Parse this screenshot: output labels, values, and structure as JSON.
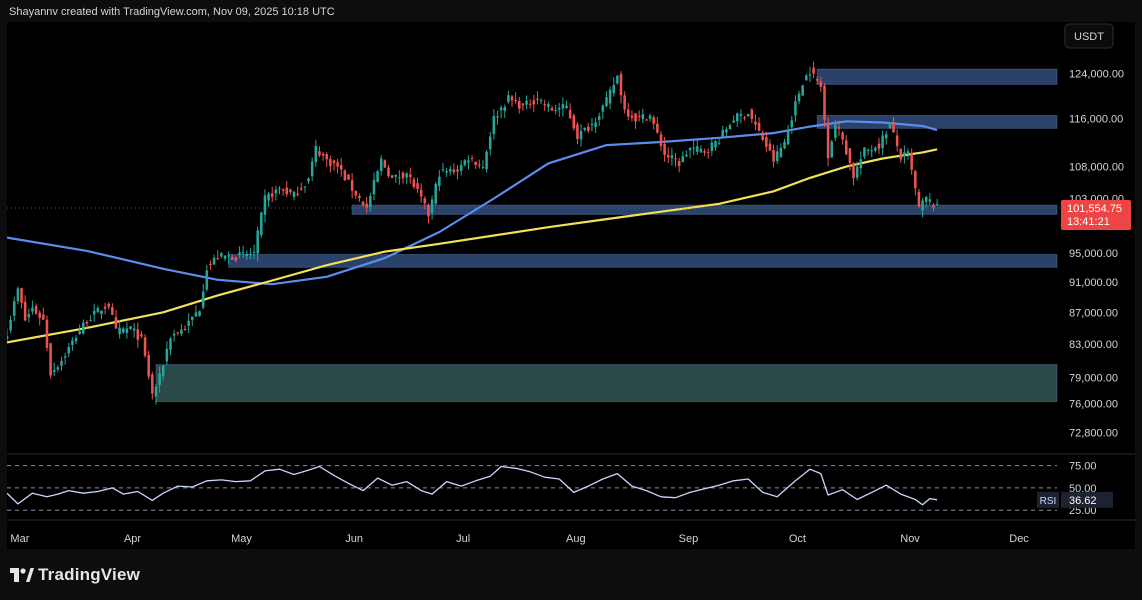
{
  "header": {
    "attribution": "Shayannv created with TradingView.com, Nov 09, 2025 10:18 UTC"
  },
  "footer": {
    "brand": "TradingView",
    "logo_icon": "tradingview-logo-icon"
  },
  "colors": {
    "background": "#000000",
    "up": "#26a69a",
    "down": "#ef5350",
    "ma_blue": "#5b8def",
    "ma_yellow": "#f2e05a",
    "zone_blue": "#2c4570",
    "zone_teal": "#2e4d4d",
    "price_tag": "#ef4444",
    "rsi_line": "#c9d6ff"
  },
  "chart_data": [
    {
      "type": "candlestick",
      "quote_currency": "USDT",
      "x_ticks": [
        "Mar",
        "Apr",
        "May",
        "Jun",
        "Jul",
        "Aug",
        "Sep",
        "Oct",
        "Nov",
        "Dec"
      ],
      "x_range": [
        "2025-02-26",
        "2025-12-12"
      ],
      "y_ticks": [
        124000,
        116000,
        108000,
        103000,
        95000,
        91000,
        87000,
        83000,
        79000,
        76000,
        72800
      ],
      "y_tick_labels": [
        "124,000.00",
        "116,000.00",
        "108,000.00",
        "103,000.00",
        "95,000.00",
        "91,000.00",
        "87,000.00",
        "83,000.00",
        "79,000.00",
        "76,000.00",
        "72,800.00"
      ],
      "y_scale": "log",
      "y_range": [
        70500,
        126500
      ],
      "last_price": {
        "value": 101554.75,
        "label": "101,554.75",
        "countdown": "13:41:21"
      },
      "close_series": [
        [
          "2025-02-26",
          84500
        ],
        [
          "2025-03-01",
          90000
        ],
        [
          "2025-03-03",
          86000
        ],
        [
          "2025-03-05",
          87500
        ],
        [
          "2025-03-08",
          86000
        ],
        [
          "2025-03-10",
          79500
        ],
        [
          "2025-03-13",
          81000
        ],
        [
          "2025-03-17",
          84000
        ],
        [
          "2025-03-20",
          86000
        ],
        [
          "2025-03-24",
          87500
        ],
        [
          "2025-03-26",
          88000
        ],
        [
          "2025-03-28",
          84500
        ],
        [
          "2025-04-01",
          85000
        ],
        [
          "2025-04-04",
          83500
        ],
        [
          "2025-04-07",
          77000
        ],
        [
          "2025-04-09",
          79000
        ],
        [
          "2025-04-12",
          84000
        ],
        [
          "2025-04-16",
          85000
        ],
        [
          "2025-04-20",
          87500
        ],
        [
          "2025-04-22",
          93000
        ],
        [
          "2025-04-25",
          94500
        ],
        [
          "2025-04-30",
          94500
        ],
        [
          "2025-05-05",
          95000
        ],
        [
          "2025-05-08",
          103000
        ],
        [
          "2025-05-12",
          104500
        ],
        [
          "2025-05-16",
          103500
        ],
        [
          "2025-05-20",
          106000
        ],
        [
          "2025-05-22",
          111000
        ],
        [
          "2025-05-25",
          109000
        ],
        [
          "2025-05-28",
          108000
        ],
        [
          "2025-06-01",
          104500
        ],
        [
          "2025-06-05",
          101500
        ],
        [
          "2025-06-09",
          109000
        ],
        [
          "2025-06-12",
          106000
        ],
        [
          "2025-06-16",
          107000
        ],
        [
          "2025-06-19",
          104000
        ],
        [
          "2025-06-22",
          100500
        ],
        [
          "2025-06-25",
          107000
        ],
        [
          "2025-06-30",
          107500
        ],
        [
          "2025-07-03",
          109500
        ],
        [
          "2025-07-07",
          108000
        ],
        [
          "2025-07-10",
          116000
        ],
        [
          "2025-07-14",
          119500
        ],
        [
          "2025-07-18",
          118000
        ],
        [
          "2025-07-22",
          119500
        ],
        [
          "2025-07-26",
          117500
        ],
        [
          "2025-07-30",
          118000
        ],
        [
          "2025-08-02",
          113000
        ],
        [
          "2025-08-06",
          115000
        ],
        [
          "2025-08-10",
          119000
        ],
        [
          "2025-08-13",
          123500
        ],
        [
          "2025-08-15",
          117500
        ],
        [
          "2025-08-18",
          116000
        ],
        [
          "2025-08-22",
          116500
        ],
        [
          "2025-08-26",
          110000
        ],
        [
          "2025-08-30",
          108500
        ],
        [
          "2025-09-02",
          111000
        ],
        [
          "2025-09-06",
          110500
        ],
        [
          "2025-09-10",
          112500
        ],
        [
          "2025-09-14",
          116000
        ],
        [
          "2025-09-18",
          117000
        ],
        [
          "2025-09-22",
          112500
        ],
        [
          "2025-09-25",
          109000
        ],
        [
          "2025-09-28",
          112000
        ],
        [
          "2025-10-01",
          118500
        ],
        [
          "2025-10-03",
          122500
        ],
        [
          "2025-10-05",
          124500
        ],
        [
          "2025-10-08",
          121500
        ],
        [
          "2025-10-10",
          110000
        ],
        [
          "2025-10-12",
          115000
        ],
        [
          "2025-10-14",
          112500
        ],
        [
          "2025-10-17",
          106500
        ],
        [
          "2025-10-20",
          110500
        ],
        [
          "2025-10-24",
          111500
        ],
        [
          "2025-10-27",
          115000
        ],
        [
          "2025-10-30",
          109500
        ],
        [
          "2025-11-01",
          110000
        ],
        [
          "2025-11-04",
          101500
        ],
        [
          "2025-11-06",
          103000
        ],
        [
          "2025-11-09",
          101554.75
        ]
      ],
      "moving_averages": [
        {
          "color": "#5b8def",
          "points": [
            [
              "2025-02-26",
              97200
            ],
            [
              "2025-03-20",
              95300
            ],
            [
              "2025-04-10",
              92800
            ],
            [
              "2025-04-25",
              91300
            ],
            [
              "2025-05-10",
              90700
            ],
            [
              "2025-05-25",
              91700
            ],
            [
              "2025-06-10",
              94300
            ],
            [
              "2025-06-25",
              98000
            ],
            [
              "2025-07-10",
              103000
            ],
            [
              "2025-07-25",
              108500
            ],
            [
              "2025-08-10",
              111500
            ],
            [
              "2025-08-25",
              112000
            ],
            [
              "2025-09-10",
              112700
            ],
            [
              "2025-09-25",
              113500
            ],
            [
              "2025-10-05",
              114600
            ],
            [
              "2025-10-15",
              115500
            ],
            [
              "2025-10-25",
              115300
            ],
            [
              "2025-11-05",
              114700
            ],
            [
              "2025-11-09",
              114000
            ]
          ]
        },
        {
          "color": "#f2e05a",
          "points": [
            [
              "2025-02-26",
              83200
            ],
            [
              "2025-03-20",
              85000
            ],
            [
              "2025-04-10",
              87000
            ],
            [
              "2025-04-25",
              89200
            ],
            [
              "2025-05-10",
              91200
            ],
            [
              "2025-05-25",
              93300
            ],
            [
              "2025-06-10",
              95200
            ],
            [
              "2025-06-25",
              96300
            ],
            [
              "2025-07-10",
              97500
            ],
            [
              "2025-07-25",
              98700
            ],
            [
              "2025-08-10",
              99900
            ],
            [
              "2025-08-25",
              101000
            ],
            [
              "2025-09-10",
              102200
            ],
            [
              "2025-09-25",
              104100
            ],
            [
              "2025-10-05",
              106200
            ],
            [
              "2025-10-15",
              108000
            ],
            [
              "2025-10-25",
              109300
            ],
            [
              "2025-11-05",
              110300
            ],
            [
              "2025-11-09",
              110800
            ]
          ]
        }
      ],
      "zones": [
        {
          "color": "#2c4570",
          "from": "2025-10-07",
          "to": "2025-12-12",
          "low": 122000,
          "high": 124800
        },
        {
          "color": "#2c4570",
          "from": "2025-10-07",
          "to": "2025-12-12",
          "low": 114300,
          "high": 116500
        },
        {
          "color": "#2c4570",
          "from": "2025-06-01",
          "to": "2025-12-12",
          "low": 100600,
          "high": 102000
        },
        {
          "color": "#2c4570",
          "from": "2025-04-28",
          "to": "2025-12-12",
          "low": 93000,
          "high": 94800
        },
        {
          "color": "#2e4d4d",
          "from": "2025-04-08",
          "to": "2025-12-12",
          "low": 76200,
          "high": 80500
        }
      ]
    },
    {
      "type": "line",
      "name": "RSI",
      "badge_label": "RSI",
      "y_ticks": [
        75,
        50,
        25
      ],
      "y_tick_labels": [
        "75.00",
        "50.00",
        "25.00"
      ],
      "y_range": [
        14,
        88
      ],
      "last_value": 36.62,
      "last_value_label": "36.62",
      "values": [
        [
          "2025-02-26",
          44
        ],
        [
          "2025-03-01",
          32
        ],
        [
          "2025-03-05",
          44
        ],
        [
          "2025-03-09",
          40
        ],
        [
          "2025-03-12",
          43
        ],
        [
          "2025-03-15",
          47
        ],
        [
          "2025-03-19",
          44
        ],
        [
          "2025-03-23",
          46
        ],
        [
          "2025-03-27",
          50
        ],
        [
          "2025-03-30",
          43
        ],
        [
          "2025-04-03",
          46
        ],
        [
          "2025-04-07",
          36
        ],
        [
          "2025-04-10",
          44
        ],
        [
          "2025-04-14",
          52
        ],
        [
          "2025-04-18",
          51
        ],
        [
          "2025-04-22",
          58
        ],
        [
          "2025-04-26",
          59
        ],
        [
          "2025-04-30",
          57
        ],
        [
          "2025-05-04",
          58
        ],
        [
          "2025-05-08",
          69
        ],
        [
          "2025-05-12",
          71
        ],
        [
          "2025-05-16",
          65
        ],
        [
          "2025-05-20",
          70
        ],
        [
          "2025-05-23",
          74
        ],
        [
          "2025-05-27",
          64
        ],
        [
          "2025-05-31",
          55
        ],
        [
          "2025-06-04",
          47
        ],
        [
          "2025-06-08",
          61
        ],
        [
          "2025-06-12",
          53
        ],
        [
          "2025-06-16",
          57
        ],
        [
          "2025-06-20",
          47
        ],
        [
          "2025-06-23",
          43
        ],
        [
          "2025-06-27",
          57
        ],
        [
          "2025-07-01",
          52
        ],
        [
          "2025-07-05",
          58
        ],
        [
          "2025-07-09",
          63
        ],
        [
          "2025-07-12",
          74
        ],
        [
          "2025-07-16",
          72
        ],
        [
          "2025-07-20",
          68
        ],
        [
          "2025-07-24",
          62
        ],
        [
          "2025-07-28",
          60
        ],
        [
          "2025-08-01",
          45
        ],
        [
          "2025-08-05",
          52
        ],
        [
          "2025-08-09",
          60
        ],
        [
          "2025-08-13",
          66
        ],
        [
          "2025-08-17",
          52
        ],
        [
          "2025-08-21",
          47
        ],
        [
          "2025-08-25",
          40
        ],
        [
          "2025-08-29",
          39
        ],
        [
          "2025-09-02",
          45
        ],
        [
          "2025-09-06",
          49
        ],
        [
          "2025-09-10",
          53
        ],
        [
          "2025-09-14",
          58
        ],
        [
          "2025-09-18",
          60
        ],
        [
          "2025-09-22",
          45
        ],
        [
          "2025-09-26",
          40
        ],
        [
          "2025-10-01",
          58
        ],
        [
          "2025-10-05",
          71
        ],
        [
          "2025-10-08",
          66
        ],
        [
          "2025-10-10",
          42
        ],
        [
          "2025-10-14",
          48
        ],
        [
          "2025-10-18",
          37
        ],
        [
          "2025-10-22",
          45
        ],
        [
          "2025-10-26",
          53
        ],
        [
          "2025-10-30",
          43
        ],
        [
          "2025-11-03",
          37
        ],
        [
          "2025-11-05",
          31
        ],
        [
          "2025-11-07",
          38
        ],
        [
          "2025-11-09",
          36.62
        ]
      ]
    }
  ]
}
